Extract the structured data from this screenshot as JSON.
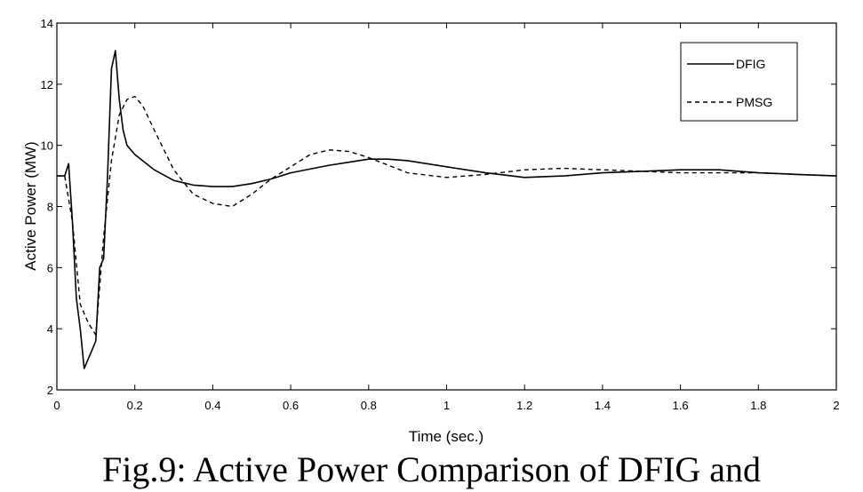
{
  "chart_data": {
    "type": "line",
    "title": "",
    "xlabel": "Time (sec.)",
    "ylabel": "Active Power (MW)",
    "xlim": [
      0,
      2
    ],
    "ylim": [
      2,
      14
    ],
    "xticks": [
      0,
      0.2,
      0.4,
      0.6,
      0.8,
      1,
      1.2,
      1.4,
      1.6,
      1.8,
      2
    ],
    "xtick_labels": [
      "0",
      "0.2",
      "0.4",
      "0.6",
      "0.8",
      "1",
      "1.2",
      "1.4",
      "1.6",
      "1.8",
      "2"
    ],
    "yticks": [
      2,
      4,
      6,
      8,
      10,
      12,
      14
    ],
    "ytick_labels": [
      "2",
      "4",
      "6",
      "8",
      "10",
      "12",
      "14"
    ],
    "grid": false,
    "legend_position": "top-right",
    "series": [
      {
        "name": "DFIG",
        "style": "solid",
        "x": [
          0,
          0.02,
          0.03,
          0.04,
          0.05,
          0.06,
          0.07,
          0.08,
          0.09,
          0.1,
          0.11,
          0.12,
          0.13,
          0.14,
          0.15,
          0.16,
          0.17,
          0.18,
          0.2,
          0.25,
          0.3,
          0.35,
          0.4,
          0.45,
          0.5,
          0.55,
          0.6,
          0.7,
          0.8,
          0.85,
          0.9,
          1.0,
          1.1,
          1.2,
          1.3,
          1.4,
          1.5,
          1.6,
          1.7,
          1.8,
          1.9,
          2.0
        ],
        "y": [
          9.0,
          9.0,
          9.4,
          7.5,
          5.0,
          4.0,
          2.7,
          3.0,
          3.3,
          3.6,
          6.0,
          6.3,
          9.0,
          12.5,
          13.1,
          11.5,
          10.5,
          10.0,
          9.7,
          9.2,
          8.85,
          8.7,
          8.65,
          8.65,
          8.75,
          8.9,
          9.1,
          9.35,
          9.55,
          9.55,
          9.5,
          9.3,
          9.1,
          8.95,
          9.0,
          9.1,
          9.15,
          9.2,
          9.2,
          9.1,
          9.05,
          9.0
        ]
      },
      {
        "name": "PMSG",
        "style": "dashed",
        "x": [
          0,
          0.02,
          0.04,
          0.06,
          0.08,
          0.1,
          0.12,
          0.14,
          0.16,
          0.18,
          0.2,
          0.22,
          0.25,
          0.3,
          0.35,
          0.4,
          0.45,
          0.5,
          0.55,
          0.6,
          0.65,
          0.7,
          0.75,
          0.8,
          0.85,
          0.9,
          1.0,
          1.1,
          1.2,
          1.3,
          1.4,
          1.5,
          1.6,
          1.7,
          1.8,
          1.9,
          2.0
        ],
        "y": [
          9.0,
          9.0,
          7.5,
          4.8,
          4.2,
          3.8,
          7.0,
          9.5,
          11.0,
          11.5,
          11.6,
          11.3,
          10.5,
          9.2,
          8.4,
          8.1,
          8.0,
          8.4,
          8.9,
          9.3,
          9.7,
          9.85,
          9.8,
          9.6,
          9.35,
          9.1,
          8.95,
          9.05,
          9.2,
          9.25,
          9.2,
          9.15,
          9.1,
          9.1,
          9.1,
          9.05,
          9.0
        ]
      }
    ],
    "caption": "Fig.9: Active Power Comparison of DFIG and"
  }
}
